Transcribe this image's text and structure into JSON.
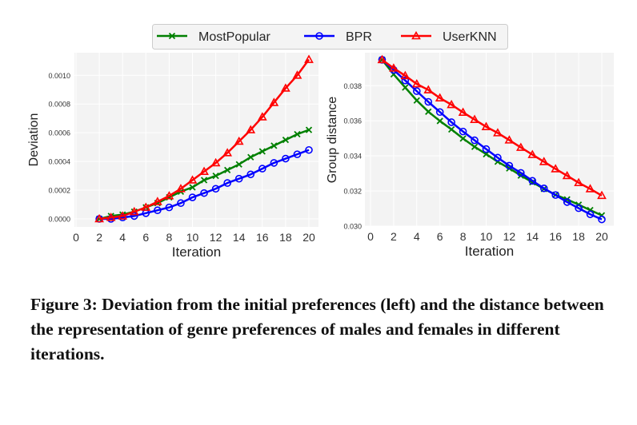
{
  "legend": {
    "items": [
      {
        "name": "MostPopular",
        "color": "#008000",
        "marker": "x"
      },
      {
        "name": "BPR",
        "color": "#0000ff",
        "marker": "circle"
      },
      {
        "name": "UserKNN",
        "color": "#ff0000",
        "marker": "triangle"
      }
    ],
    "placement": "top-center"
  },
  "chart_data": [
    {
      "type": "line",
      "xlabel": "Iteration",
      "ylabel": "Deviation",
      "xlim": [
        0,
        21
      ],
      "ylim": [
        -5e-05,
        0.00116
      ],
      "xticks": [
        "0",
        "2",
        "4",
        "6",
        "8",
        "10",
        "12",
        "14",
        "16",
        "18",
        "20"
      ],
      "yticks": [
        "0.0000",
        "0.0002",
        "0.0004",
        "0.0006",
        "0.0008",
        "0.0010"
      ],
      "grid": true,
      "x": [
        2,
        3,
        4,
        5,
        6,
        7,
        8,
        9,
        10,
        11,
        12,
        13,
        14,
        15,
        16,
        17,
        18,
        19,
        20
      ],
      "series": [
        {
          "name": "MostPopular",
          "values": [
            0,
            2e-05,
            3e-05,
            5e-05,
            8e-05,
            0.00011,
            0.00015,
            0.00019,
            0.00022,
            0.00027,
            0.0003,
            0.00034,
            0.00038,
            0.00043,
            0.00047,
            0.00051,
            0.00055,
            0.00059,
            0.00062
          ]
        },
        {
          "name": "BPR",
          "values": [
            0,
            0,
            1e-05,
            2e-05,
            4e-05,
            6e-05,
            8e-05,
            0.00011,
            0.00015,
            0.00018,
            0.00021,
            0.00025,
            0.00028,
            0.00031,
            0.00035,
            0.00039,
            0.00042,
            0.00045,
            0.00048
          ]
        },
        {
          "name": "UserKNN",
          "values": [
            0,
            1e-05,
            2e-05,
            5e-05,
            8e-05,
            0.00012,
            0.00016,
            0.00021,
            0.00027,
            0.00033,
            0.00039,
            0.00046,
            0.00054,
            0.00062,
            0.00071,
            0.00081,
            0.00091,
            0.001,
            0.00111
          ]
        }
      ]
    },
    {
      "type": "line",
      "xlabel": "Iteration",
      "ylabel": "Group distance",
      "xlim": [
        0,
        21
      ],
      "ylim": [
        0.03,
        0.0398
      ],
      "xticks": [
        "0",
        "2",
        "4",
        "6",
        "8",
        "10",
        "12",
        "14",
        "16",
        "18",
        "20"
      ],
      "yticks": [
        "0.030",
        "0.032",
        "0.034",
        "0.036",
        "0.038"
      ],
      "grid": true,
      "x": [
        1,
        2,
        3,
        4,
        5,
        6,
        7,
        8,
        9,
        10,
        11,
        12,
        13,
        14,
        15,
        16,
        17,
        18,
        19,
        20
      ],
      "series": [
        {
          "name": "MostPopular",
          "values": [
            0.03948,
            0.03865,
            0.0379,
            0.03716,
            0.03652,
            0.03599,
            0.03551,
            0.03499,
            0.03452,
            0.0341,
            0.03367,
            0.03329,
            0.03288,
            0.0325,
            0.03212,
            0.03178,
            0.03152,
            0.03122,
            0.03091,
            0.03061
          ]
        },
        {
          "name": "BPR",
          "values": [
            0.03948,
            0.0389,
            0.0383,
            0.03769,
            0.03708,
            0.0365,
            0.03592,
            0.03539,
            0.03489,
            0.03439,
            0.0339,
            0.03344,
            0.03303,
            0.03258,
            0.03215,
            0.03177,
            0.03137,
            0.03102,
            0.03067,
            0.03038
          ]
        },
        {
          "name": "UserKNN",
          "values": [
            0.03948,
            0.039,
            0.03857,
            0.0381,
            0.03776,
            0.0373,
            0.03692,
            0.03648,
            0.03607,
            0.03566,
            0.03531,
            0.0349,
            0.03448,
            0.03407,
            0.03367,
            0.03326,
            0.03287,
            0.03247,
            0.03212,
            0.03174
          ]
        }
      ]
    }
  ],
  "caption": "Figure 3: Deviation from the initial preferences (left) and the distance between the representation of genre preferences of males and females in different iterations."
}
